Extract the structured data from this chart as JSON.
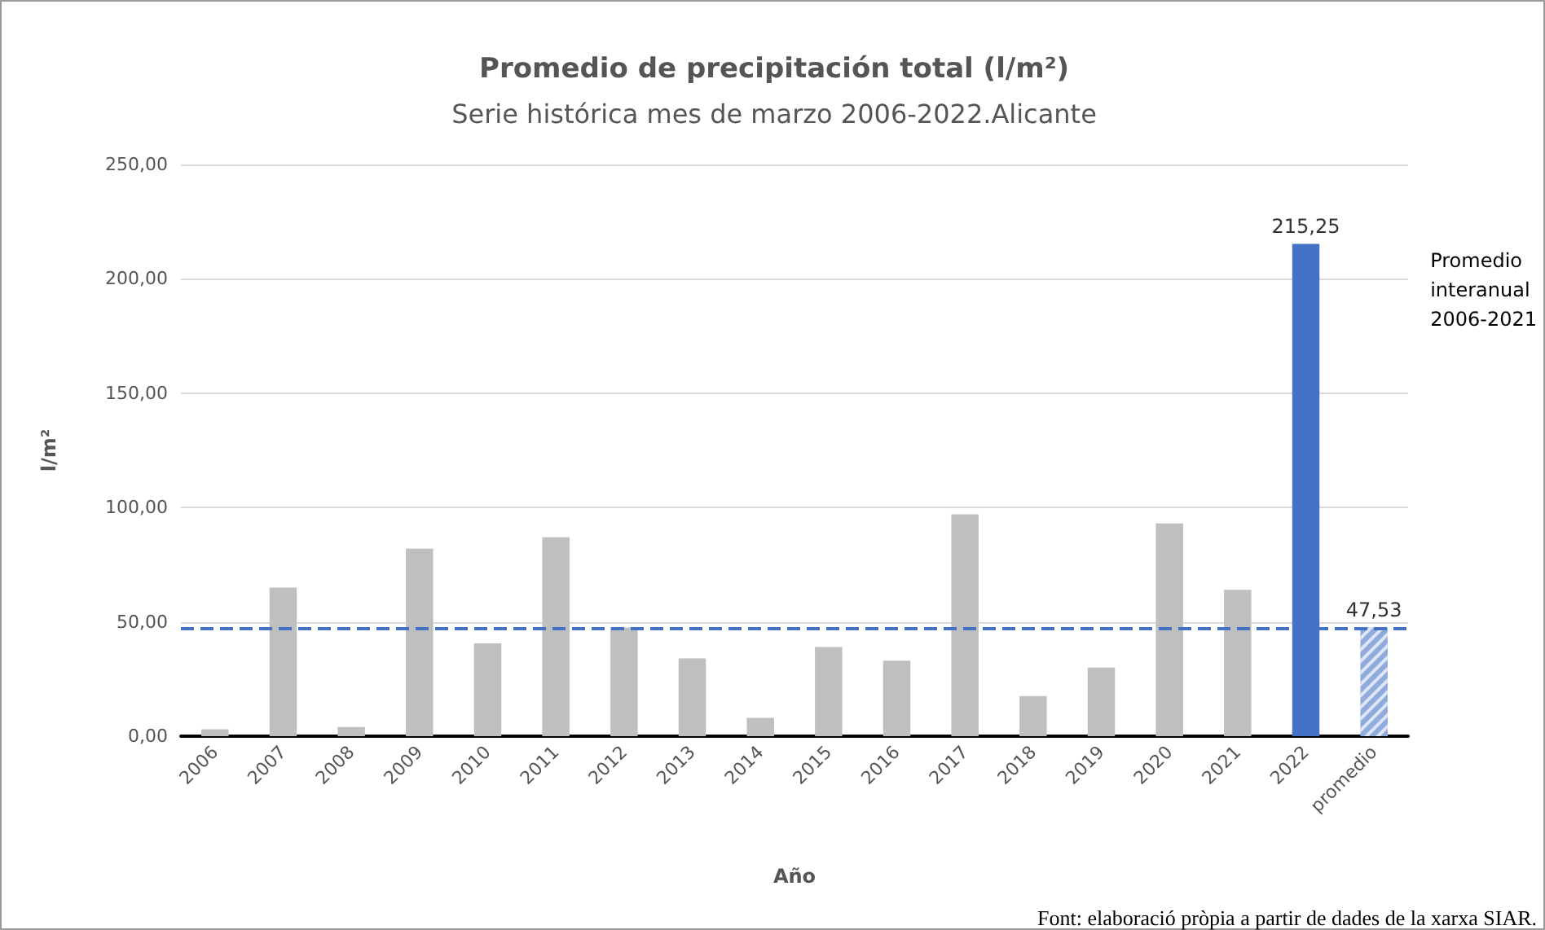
{
  "chart_data": {
    "type": "bar",
    "title": "Promedio de precipitación total (l/m²)",
    "subtitle": "Serie histórica mes de marzo 2006-2022.Alicante",
    "xlabel": "Año",
    "ylabel": "l/m²",
    "categories": [
      "2006",
      "2007",
      "2008",
      "2009",
      "2010",
      "2011",
      "2012",
      "2013",
      "2014",
      "2015",
      "2016",
      "2017",
      "2018",
      "2019",
      "2020",
      "2021",
      "2022",
      "promedio"
    ],
    "values": [
      3,
      65,
      4,
      82,
      40.6,
      87,
      47.5,
      34,
      8,
      39,
      33,
      97,
      17.5,
      30,
      93,
      64,
      215.25,
      47.53
    ],
    "colors": [
      "#bfbfbf",
      "#bfbfbf",
      "#bfbfbf",
      "#bfbfbf",
      "#bfbfbf",
      "#bfbfbf",
      "#bfbfbf",
      "#bfbfbf",
      "#bfbfbf",
      "#bfbfbf",
      "#bfbfbf",
      "#bfbfbf",
      "#bfbfbf",
      "#bfbfbf",
      "#bfbfbf",
      "#bfbfbf",
      "#4472c4",
      "#8faadc"
    ],
    "value_labels": [
      null,
      null,
      null,
      null,
      null,
      null,
      null,
      null,
      null,
      null,
      null,
      null,
      null,
      null,
      null,
      null,
      "215,25",
      "47,53"
    ],
    "ylim": [
      0,
      250
    ],
    "yticks": [
      {
        "value": 0,
        "label": "0,00"
      },
      {
        "value": 50,
        "label": "50,00"
      },
      {
        "value": 100,
        "label": "100,00"
      },
      {
        "value": 150,
        "label": "150,00"
      },
      {
        "value": 200,
        "label": "200,00"
      },
      {
        "value": 250,
        "label": "250,00"
      }
    ],
    "ref_lines": [
      {
        "axis": "y",
        "value": 47.53,
        "color": "#4472c4",
        "line_style": "dashed"
      }
    ],
    "annotations": [
      "Promedio\ninteranual\n2006-2021",
      "Font: elaboració pròpia a partir de dades de la xarxa SIAR."
    ],
    "grid": "y"
  }
}
